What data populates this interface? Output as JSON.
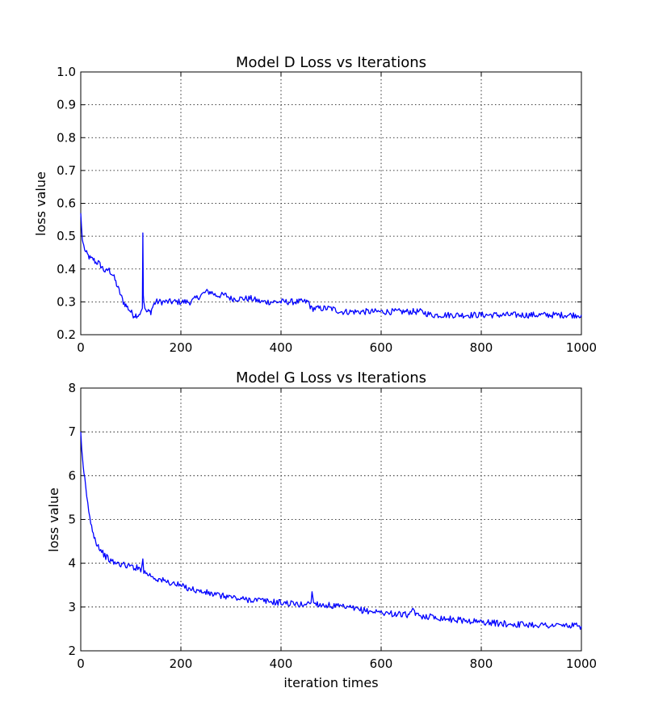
{
  "chart_data": [
    {
      "type": "line",
      "title": "Model D Loss vs Iterations",
      "xlabel": "",
      "ylabel": "loss value",
      "xlim": [
        0,
        1000
      ],
      "ylim": [
        0.2,
        1.0
      ],
      "xticks": [
        "0",
        "200",
        "400",
        "600",
        "800",
        "1000"
      ],
      "yticks": [
        "0.2",
        "0.3",
        "0.4",
        "0.5",
        "0.6",
        "0.7",
        "0.8",
        "0.9",
        "1.0"
      ],
      "grid": true,
      "line_color": "#0000ff",
      "series": [
        {
          "x": [
            0,
            3,
            6,
            10,
            15,
            20,
            25,
            30,
            35,
            40,
            45,
            50,
            55,
            60,
            65,
            70,
            75,
            80,
            85,
            90,
            95,
            100,
            105,
            110,
            115,
            120,
            123,
            124,
            125,
            126,
            128,
            130,
            135,
            140,
            145,
            150,
            160,
            170,
            180,
            190,
            200,
            210,
            220,
            230,
            240,
            250,
            260,
            270,
            280,
            290,
            300,
            320,
            340,
            360,
            380,
            400,
            420,
            440,
            455,
            460,
            480,
            500,
            520,
            540,
            560,
            580,
            600,
            620,
            640,
            660,
            680,
            700,
            720,
            740,
            760,
            780,
            800,
            820,
            840,
            860,
            880,
            900,
            920,
            940,
            960,
            980,
            1000
          ],
          "y": [
            0.57,
            0.49,
            0.47,
            0.45,
            0.44,
            0.43,
            0.43,
            0.42,
            0.42,
            0.41,
            0.4,
            0.39,
            0.4,
            0.39,
            0.38,
            0.36,
            0.34,
            0.32,
            0.3,
            0.29,
            0.28,
            0.27,
            0.26,
            0.26,
            0.26,
            0.27,
            0.28,
            0.51,
            0.32,
            0.3,
            0.28,
            0.27,
            0.27,
            0.27,
            0.29,
            0.3,
            0.3,
            0.3,
            0.3,
            0.3,
            0.3,
            0.3,
            0.3,
            0.31,
            0.32,
            0.33,
            0.33,
            0.32,
            0.32,
            0.32,
            0.31,
            0.31,
            0.31,
            0.3,
            0.3,
            0.3,
            0.3,
            0.3,
            0.3,
            0.28,
            0.28,
            0.28,
            0.27,
            0.27,
            0.27,
            0.27,
            0.27,
            0.27,
            0.27,
            0.27,
            0.27,
            0.26,
            0.26,
            0.26,
            0.26,
            0.26,
            0.26,
            0.26,
            0.26,
            0.26,
            0.26,
            0.26,
            0.26,
            0.26,
            0.26,
            0.26,
            0.26
          ]
        }
      ]
    },
    {
      "type": "line",
      "title": "Model G Loss vs Iterations",
      "xlabel": "iteration times",
      "ylabel": "loss value",
      "xlim": [
        0,
        1000
      ],
      "ylim": [
        2,
        8
      ],
      "xticks": [
        "0",
        "200",
        "400",
        "600",
        "800",
        "1000"
      ],
      "yticks": [
        "2",
        "3",
        "4",
        "5",
        "6",
        "7",
        "8"
      ],
      "grid": true,
      "line_color": "#0000ff",
      "series": [
        {
          "x": [
            0,
            2,
            5,
            8,
            12,
            16,
            20,
            25,
            30,
            35,
            40,
            50,
            60,
            70,
            80,
            90,
            100,
            110,
            120,
            124,
            126,
            130,
            140,
            150,
            160,
            170,
            180,
            190,
            200,
            210,
            220,
            230,
            240,
            250,
            260,
            270,
            280,
            290,
            300,
            310,
            320,
            340,
            360,
            380,
            400,
            420,
            440,
            460,
            462,
            465,
            480,
            500,
            520,
            540,
            560,
            580,
            600,
            620,
            640,
            660,
            665,
            670,
            680,
            700,
            720,
            740,
            760,
            780,
            800,
            820,
            840,
            860,
            880,
            900,
            920,
            940,
            960,
            980,
            1000
          ],
          "y": [
            7.0,
            6.6,
            6.2,
            5.9,
            5.5,
            5.2,
            4.9,
            4.7,
            4.5,
            4.4,
            4.3,
            4.15,
            4.05,
            4.0,
            3.98,
            3.95,
            3.93,
            3.9,
            3.87,
            4.1,
            3.8,
            3.78,
            3.72,
            3.65,
            3.62,
            3.58,
            3.55,
            3.52,
            3.48,
            3.45,
            3.42,
            3.38,
            3.35,
            3.33,
            3.3,
            3.28,
            3.25,
            3.25,
            3.23,
            3.2,
            3.18,
            3.17,
            3.15,
            3.12,
            3.1,
            3.08,
            3.05,
            3.1,
            3.35,
            3.1,
            3.05,
            3.03,
            3.0,
            2.97,
            2.93,
            2.9,
            2.88,
            2.85,
            2.83,
            2.82,
            2.98,
            2.8,
            2.8,
            2.78,
            2.75,
            2.72,
            2.7,
            2.68,
            2.66,
            2.64,
            2.62,
            2.61,
            2.6,
            2.6,
            2.59,
            2.58,
            2.58,
            2.57,
            2.56
          ]
        }
      ]
    }
  ]
}
